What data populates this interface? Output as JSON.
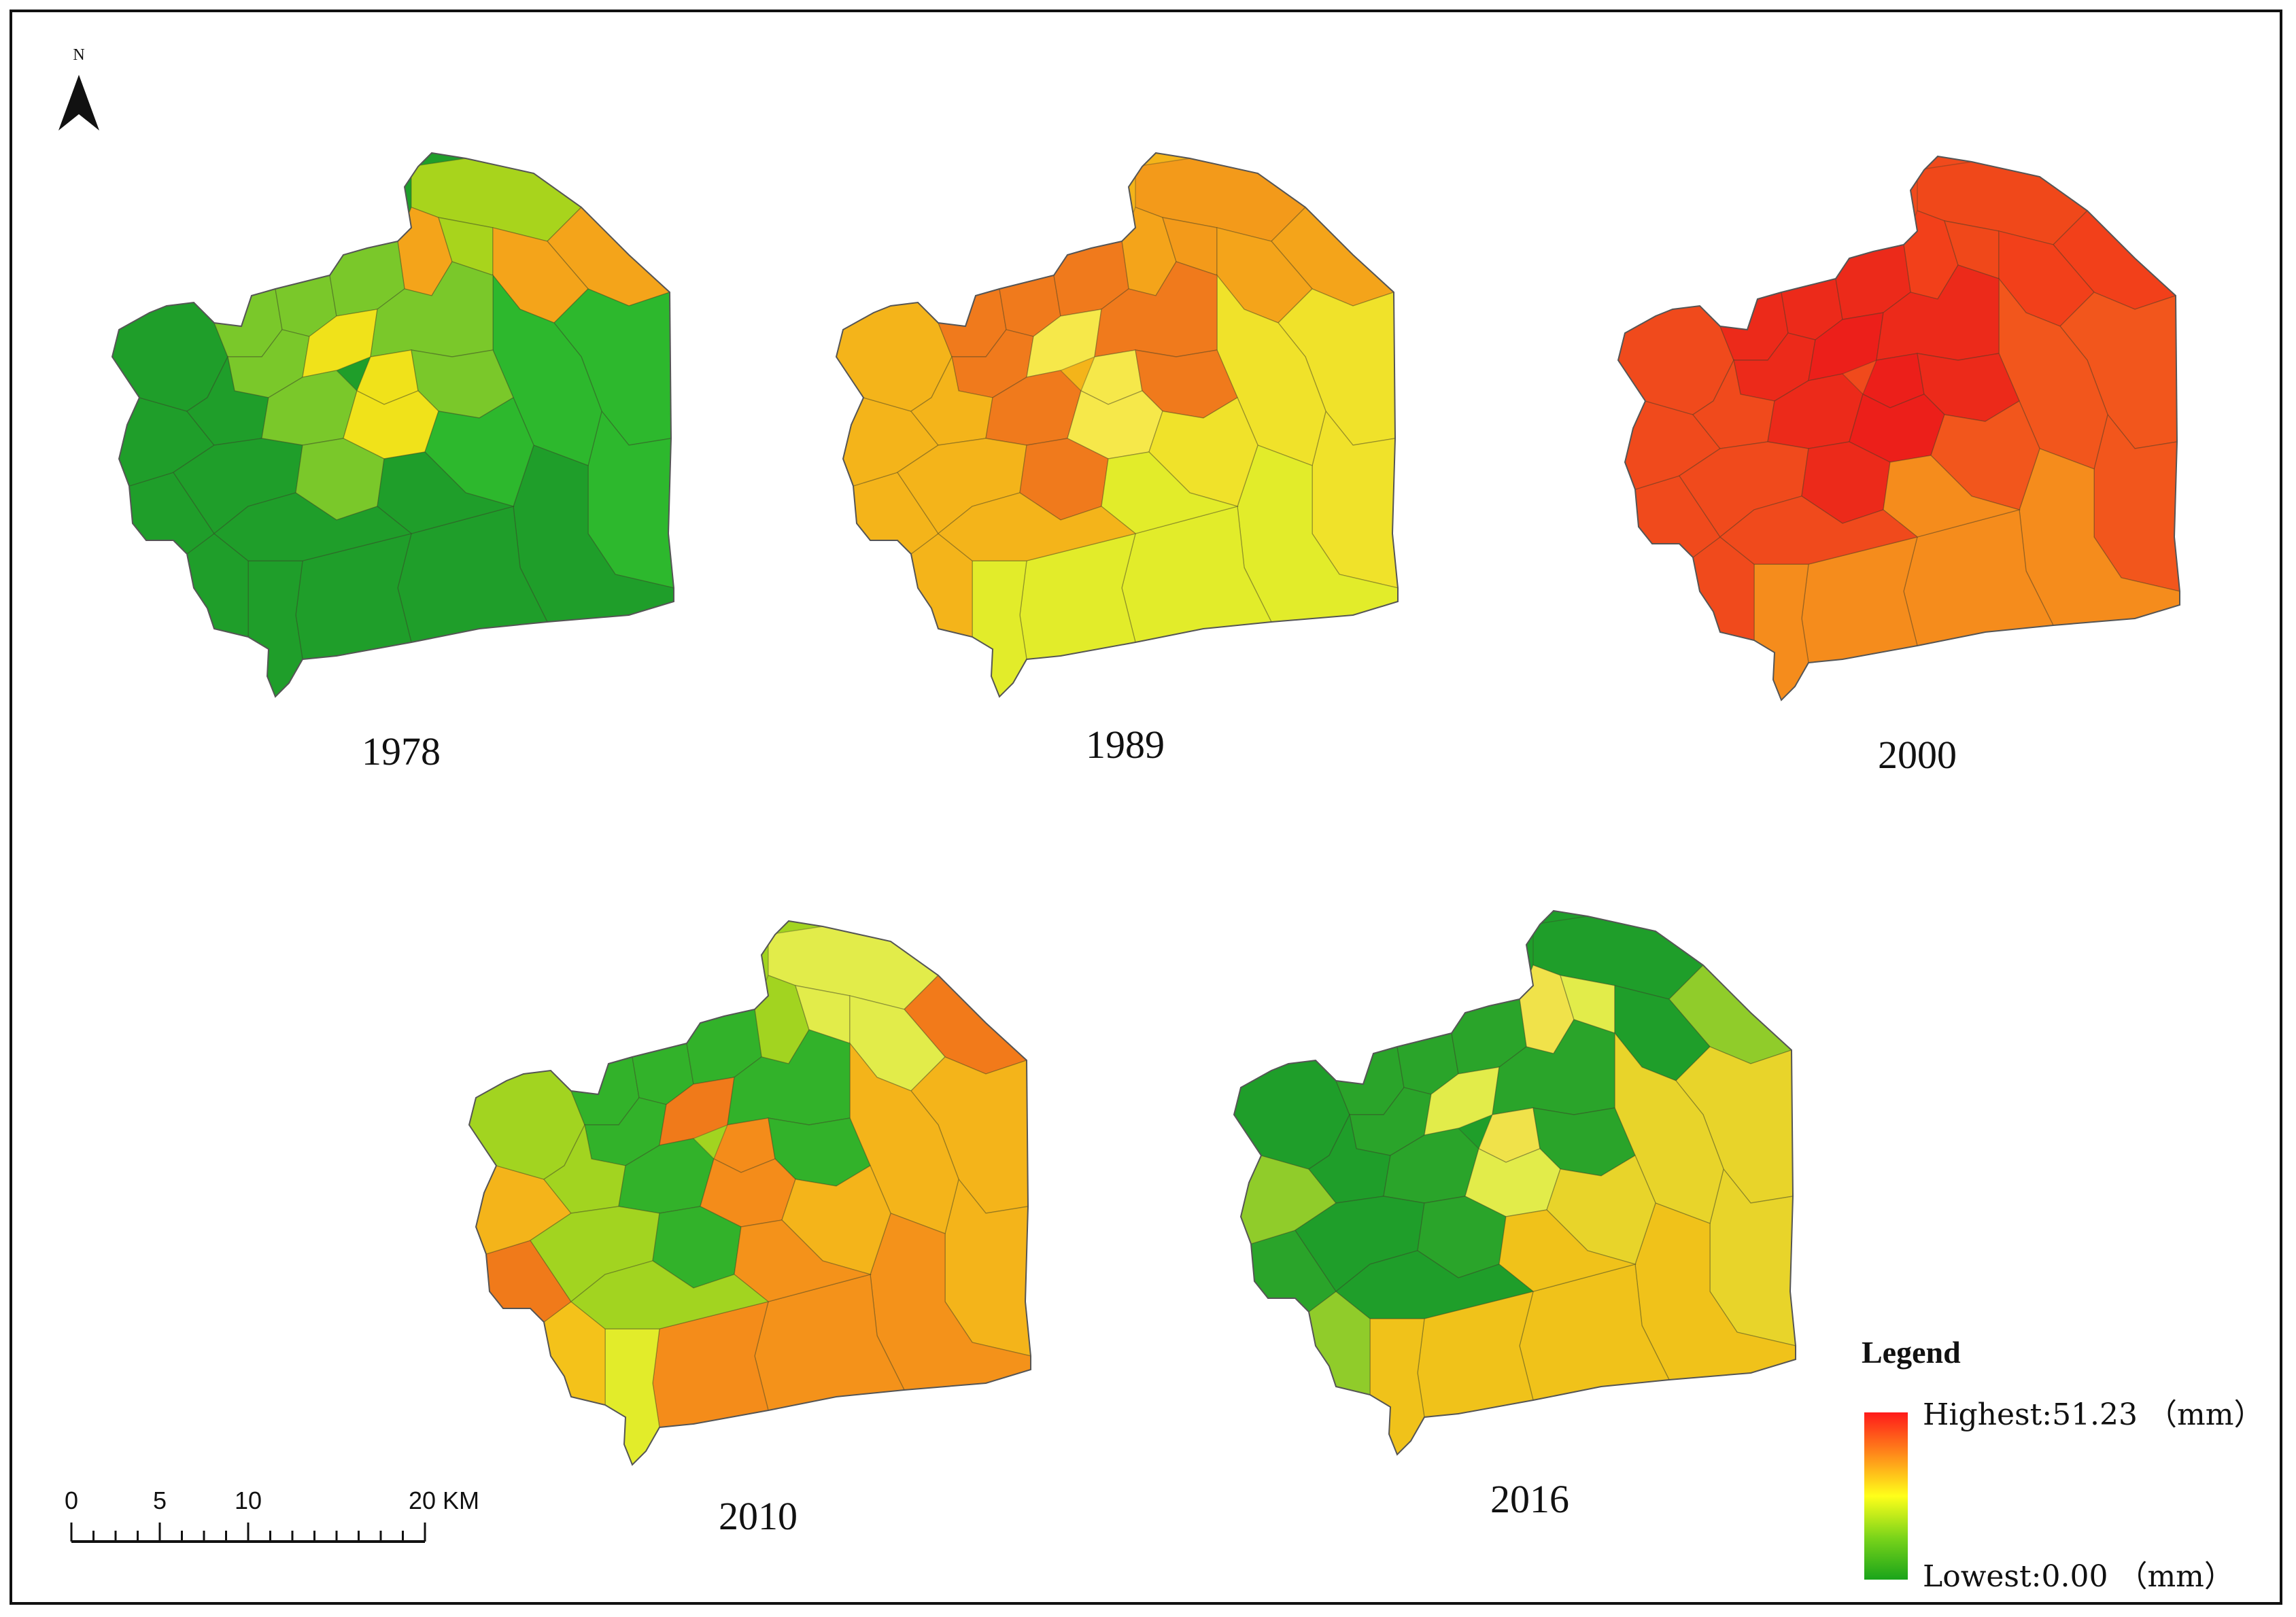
{
  "north_arrow": {
    "label": "N"
  },
  "panels": [
    {
      "year": "1978",
      "scheme": {
        "base": "#1f9e2a",
        "east": "#2db82d",
        "north": "#a8d41c",
        "center": "#7ac82a",
        "core": "#f0e21a",
        "ne": "#f4a41a",
        "south": "#1f9e2a"
      }
    },
    {
      "year": "1989",
      "scheme": {
        "base": "#f4b41a",
        "east": "#f0e22a",
        "north": "#f39a1a",
        "center": "#f07a1c",
        "core": "#f6e84a",
        "ne": "#f4a41a",
        "south": "#e2ec2a"
      }
    },
    {
      "year": "2000",
      "scheme": {
        "base": "#f04a1c",
        "east": "#f2561c",
        "north": "#f0481a",
        "center": "#ec2a1a",
        "core": "#ec1f1a",
        "ne": "#f2401a",
        "south": "#f58c1c"
      }
    },
    {
      "year": "2010",
      "scheme": {
        "base": "#a2d420",
        "east": "#f4b41a",
        "north": "#e2ec4a",
        "center": "#32b22a",
        "core": "#f48c1a",
        "ne": "#f27a1a",
        "south": "#f4921a"
      }
    },
    {
      "year": "2016",
      "scheme": {
        "base": "#1f9e2a",
        "east": "#e8d42a",
        "north": "#1f9e2a",
        "center": "#2aa42a",
        "core": "#e2ec4a",
        "ne": "#90cc2a",
        "south": "#f0c21a"
      }
    }
  ],
  "scale_bar": {
    "ticks": [
      "0",
      "5",
      "10",
      "20 KM"
    ],
    "tick_values": [
      0,
      5,
      10,
      20
    ]
  },
  "legend": {
    "title": "Legend",
    "highest": "Highest:51.23  （mm）",
    "lowest": "Lowest:0.00  （mm）",
    "gradient": [
      "#ff1a1a",
      "#ff8a1a",
      "#ffff1a",
      "#7ad41a",
      "#1aa41a"
    ]
  }
}
